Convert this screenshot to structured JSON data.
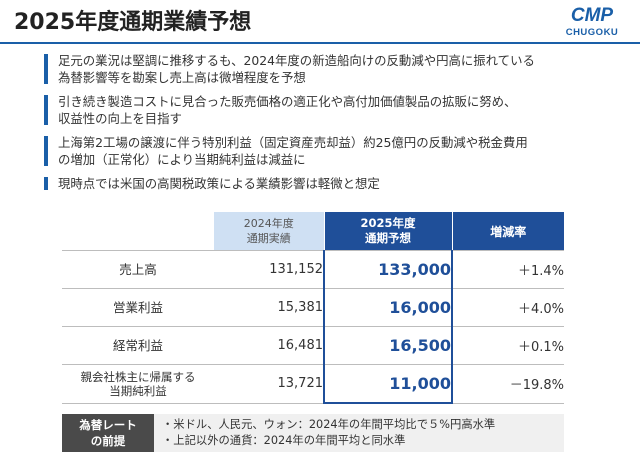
{
  "header": {
    "title": "2025年度通期業績予想",
    "logo": {
      "top": "CMP",
      "bottom": "CHUGOKU"
    },
    "accent_color": "#1a5fa8"
  },
  "bullets": [
    {
      "lines": [
        "足元の業況は堅調に推移するも、2024年度の新造船向けの反動減や円高に振れている",
        "為替影響等を勘案し売上高は微増程度を予想"
      ]
    },
    {
      "lines": [
        "引き続き製造コストに見合った販売価格の適正化や高付加価値製品の拡販に努め、",
        "収益性の向上を目指す"
      ]
    },
    {
      "lines": [
        "上海第2工場の譲渡に伴う特別利益（固定資産売却益）約25億円の反動減や税金費用",
        "の増加（正常化）により当期純利益は減益に"
      ]
    },
    {
      "lines": [
        "現時点では米国の高関税政策による業績影響は軽微と想定"
      ]
    }
  ],
  "table": {
    "headers": {
      "col2024_line1": "2024年度",
      "col2024_line2": "通期実績",
      "col2025_line1": "2025年度",
      "col2025_line2": "通期予想",
      "rate": "増減率"
    },
    "rows": [
      {
        "label1": "売上高",
        "label2": "",
        "v2024": "131,152",
        "v2025": "133,000",
        "rate": "＋1.4%"
      },
      {
        "label1": "営業利益",
        "label2": "",
        "v2024": "15,381",
        "v2025": "16,000",
        "rate": "＋4.0%"
      },
      {
        "label1": "経常利益",
        "label2": "",
        "v2024": "16,481",
        "v2025": "16,500",
        "rate": "＋0.1%"
      },
      {
        "label1": "親会社株主に帰属する",
        "label2": "当期純利益",
        "v2024": "13,721",
        "v2025": "11,000",
        "rate": "－19.8%"
      }
    ]
  },
  "fx": {
    "label_line1": "為替レート",
    "label_line2": "の前提",
    "line1": "・米ドル、人民元、ウォン：2024年の年間平均比で５%円高水準",
    "line2": "・上記以外の通貨：2024年の年間平均と同水準"
  }
}
